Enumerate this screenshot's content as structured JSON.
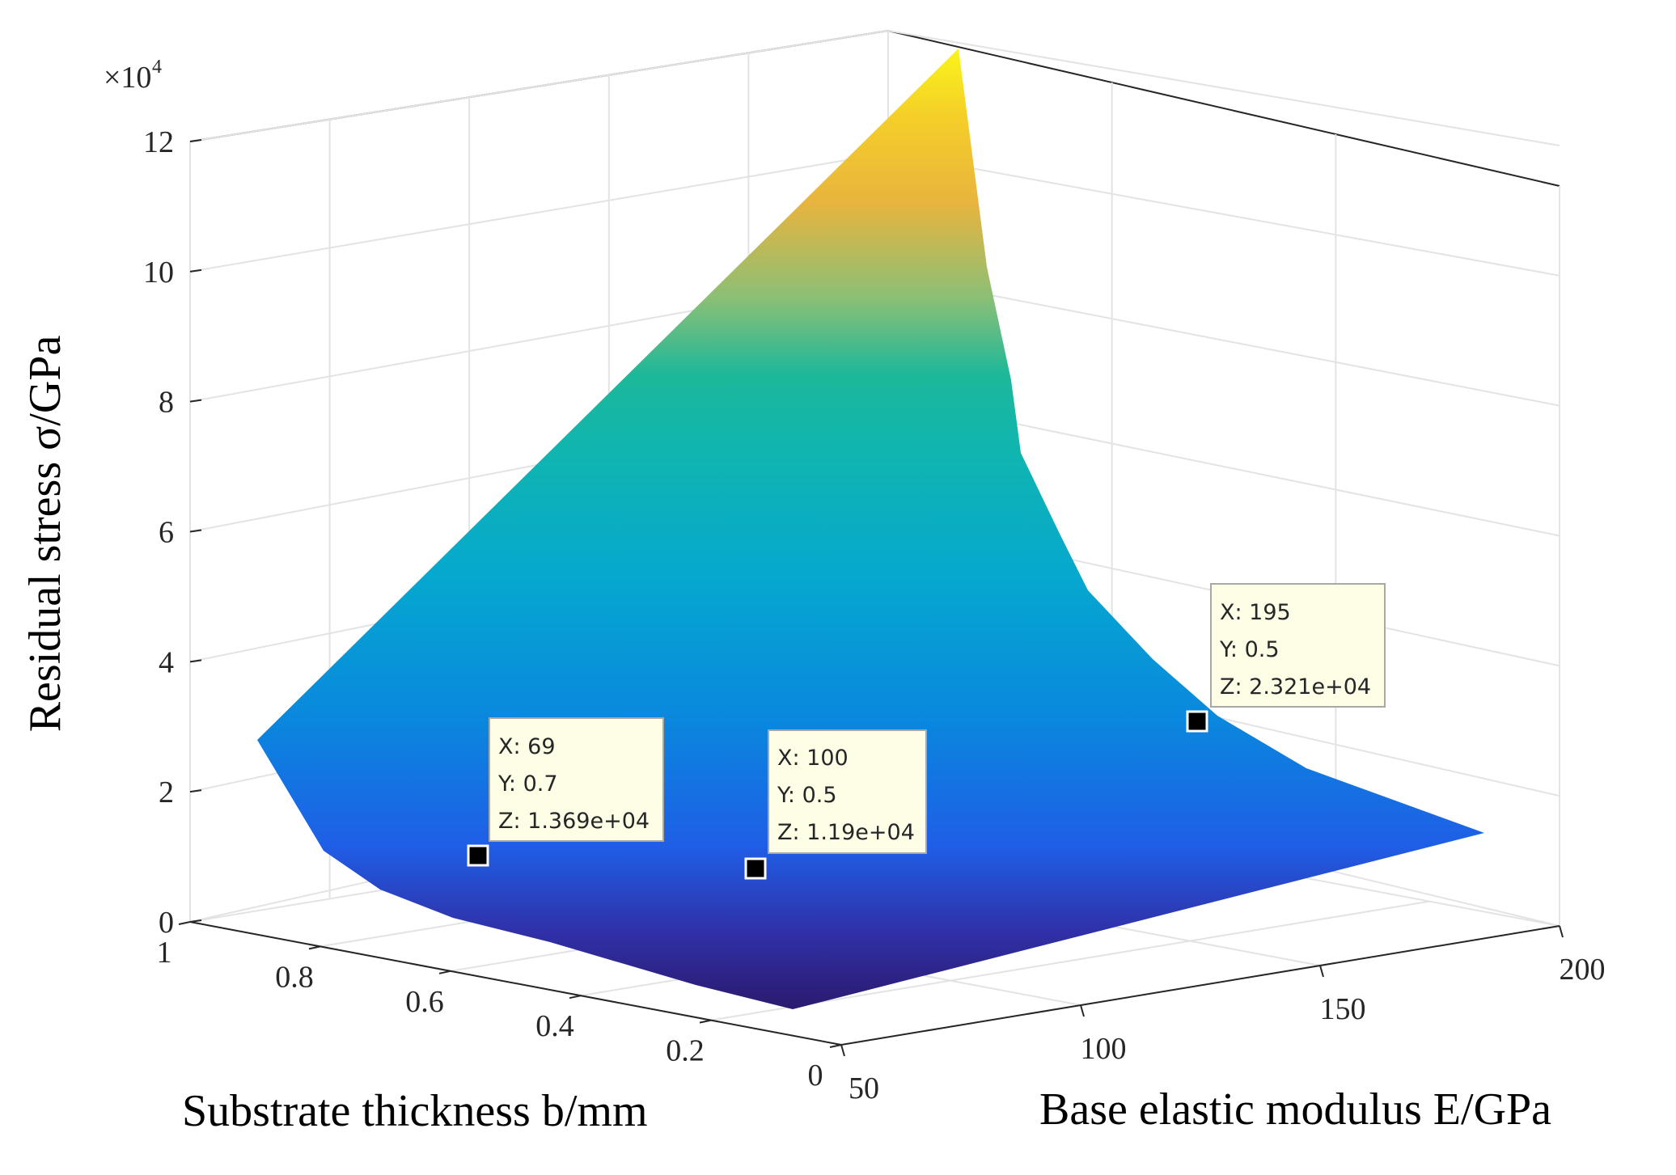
{
  "chart_data": {
    "type": "surface",
    "colormap": "parula",
    "xlabel": "Base elastic modulus E/GPa",
    "ylabel": "Substrate thickness b/mm",
    "zlabel": "Residual stress σ/GPa",
    "z_exponent_label": "×10",
    "z_exponent_power": "4",
    "xlim": [
      50,
      200
    ],
    "ylim": [
      0,
      1
    ],
    "zlim": [
      0,
      120000
    ],
    "x_ticks": [
      "50",
      "100",
      "150",
      "200"
    ],
    "x_tick_values": [
      50,
      100,
      150,
      200
    ],
    "y_ticks": [
      "0",
      "0.2",
      "0.4",
      "0.6",
      "0.8",
      "1"
    ],
    "y_tick_values": [
      0,
      0.2,
      0.4,
      0.6,
      0.8,
      1
    ],
    "z_ticks": [
      "0",
      "2",
      "4",
      "6",
      "8",
      "10",
      "12"
    ],
    "z_tick_values": [
      0,
      20000,
      40000,
      60000,
      80000,
      100000,
      120000
    ],
    "grid": true,
    "surface_edge_upper": [
      {
        "x": 50,
        "y": 0.95,
        "z": 27000
      },
      {
        "x": 80,
        "y": 0.05,
        "z": 125000
      },
      {
        "x": 85,
        "y": 0.1,
        "z": 71000
      },
      {
        "x": 95,
        "y": 0.2,
        "z": 55000
      },
      {
        "x": 110,
        "y": 0.35,
        "z": 42000
      },
      {
        "x": 130,
        "y": 0.5,
        "z": 33000
      },
      {
        "x": 165,
        "y": 0.75,
        "z": 24000
      },
      {
        "x": 200,
        "y": 0.95,
        "z": 18000
      }
    ],
    "datatips": [
      {
        "x_text": "X: 69",
        "y_text": "Y: 0.7",
        "z_text": "Z: 1.369e+04",
        "x": 69,
        "y": 0.7,
        "z": 13690
      },
      {
        "x_text": "X: 100",
        "y_text": "Y: 0.5",
        "z_text": "Z: 1.19e+04",
        "x": 100,
        "y": 0.5,
        "z": 11900
      },
      {
        "x_text": "X: 195",
        "y_text": "Y: 0.5",
        "z_text": "Z: 2.321e+04",
        "x": 195,
        "y": 0.5,
        "z": 23210
      }
    ]
  }
}
